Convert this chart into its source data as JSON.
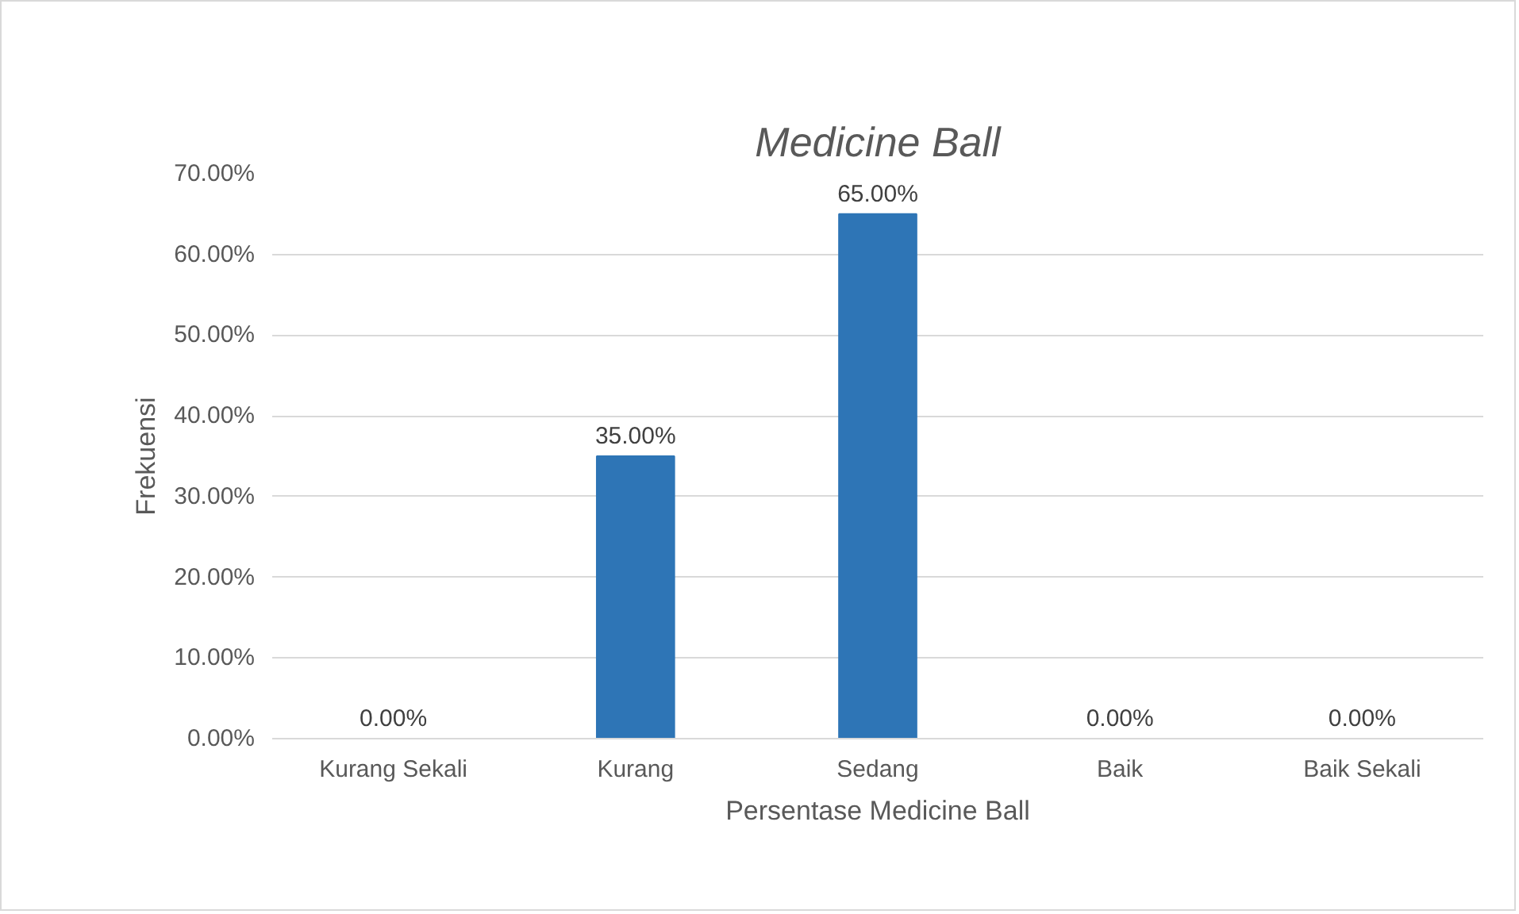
{
  "chart_data": {
    "type": "bar",
    "title": "Medicine Ball",
    "xlabel": "Persentase Medicine Ball",
    "ylabel": "Frekuensi",
    "categories": [
      "Kurang Sekali",
      "Kurang",
      "Sedang",
      "Baik",
      "Baik Sekali"
    ],
    "values": [
      0,
      35,
      65,
      0,
      0
    ],
    "color": "#2e75b6",
    "value_labels": [
      "0.00%",
      "35.00%",
      "65.00%",
      "0.00%",
      "0.00%"
    ],
    "ylim": [
      0,
      70
    ],
    "yticks": [
      {
        "value": 0,
        "label": "0.00%"
      },
      {
        "value": 10,
        "label": "10.00%"
      },
      {
        "value": 20,
        "label": "20.00%"
      },
      {
        "value": 30,
        "label": "30.00%"
      },
      {
        "value": 40,
        "label": "40.00%"
      },
      {
        "value": 50,
        "label": "50.00%"
      },
      {
        "value": 60,
        "label": "60.00%"
      },
      {
        "value": 70,
        "label": "70.00%"
      }
    ],
    "grid": "y",
    "legend": false
  }
}
